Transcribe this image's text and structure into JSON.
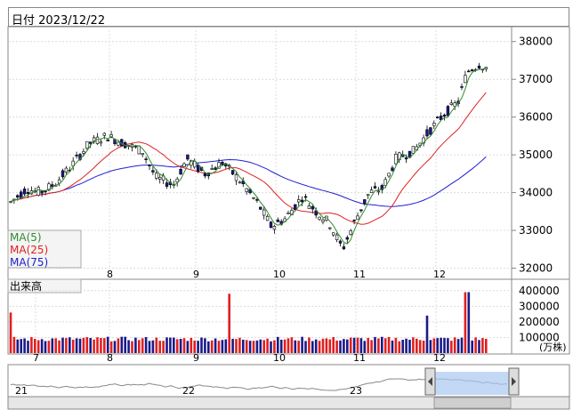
{
  "header": {
    "date_label": "日付",
    "date_value": "2023/12/22"
  },
  "price_panel": {
    "legend": [
      {
        "label": "MA(5)",
        "color": "#2e8b2e"
      },
      {
        "label": "MA(25)",
        "color": "#e02020"
      },
      {
        "label": "MA(75)",
        "color": "#2020d0"
      }
    ]
  },
  "volume_panel": {
    "title": "出来高",
    "unit": "(万株)"
  },
  "navigator": {
    "year_labels": [
      "21",
      "22",
      "23"
    ]
  },
  "chart_data": [
    {
      "type": "candlestick",
      "title": "",
      "x_month_labels": [
        "8",
        "9",
        "10",
        "11",
        "12"
      ],
      "ylim": [
        31800,
        38300
      ],
      "y_ticks": [
        32000,
        33000,
        34000,
        35000,
        36000,
        37000,
        38000
      ],
      "ohlc_sampled": [
        {
          "month": "Jul",
          "close": 33800
        },
        {
          "month": "Aug-early",
          "close": 35400
        },
        {
          "month": "Aug-end",
          "close": 34800
        },
        {
          "month": "Sep-mid",
          "close": 34500
        },
        {
          "month": "Oct-mid",
          "close": 33300
        },
        {
          "month": "Oct-end",
          "close": 32600
        },
        {
          "month": "Nov-mid",
          "close": 34800
        },
        {
          "month": "Dec-mid",
          "close": 37300
        }
      ],
      "series": [
        {
          "name": "MA(5)"
        },
        {
          "name": "MA(25)"
        },
        {
          "name": "MA(75)"
        }
      ],
      "grid": true
    },
    {
      "type": "bar",
      "title": "出来高",
      "ylabel": "(万株)",
      "ylim": [
        0,
        450000
      ],
      "y_ticks": [
        100000,
        200000,
        300000,
        400000
      ],
      "notable_values": {
        "first_bar": 260000,
        "late_sep_spike": 380000,
        "dec_spike": 390000,
        "typical": 90000
      },
      "x_month_labels": [
        "7",
        "8",
        "9",
        "10",
        "11",
        "12"
      ]
    }
  ]
}
